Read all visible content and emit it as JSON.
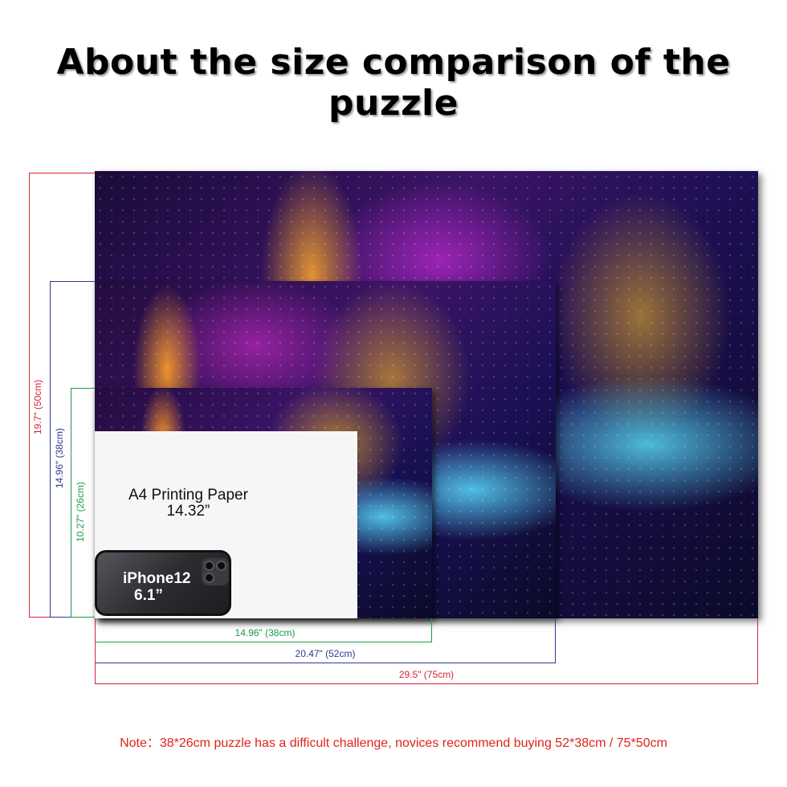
{
  "title": "About the size comparison of the puzzle",
  "colors": {
    "red": "#d4253a",
    "navy": "#2b3a8c",
    "green": "#1e9a4a",
    "note": "#e2231a"
  },
  "a4": {
    "line1": "A4 Printing Paper",
    "line2": "14.32”"
  },
  "phone": {
    "line1": "iPhone12",
    "line2": "6.1”"
  },
  "heights": {
    "large": "19.7\" (50cm)",
    "medium": "14.96\" (38cm)",
    "small": "10.27\" (26cm)"
  },
  "widths": {
    "small": "14.96\" (38cm)",
    "medium": "20.47\" (52cm)",
    "large": "29.5\" (75cm)"
  },
  "note": "Note：38*26cm puzzle has a difficult challenge, novices recommend buying 52*38cm / 75*50cm"
}
